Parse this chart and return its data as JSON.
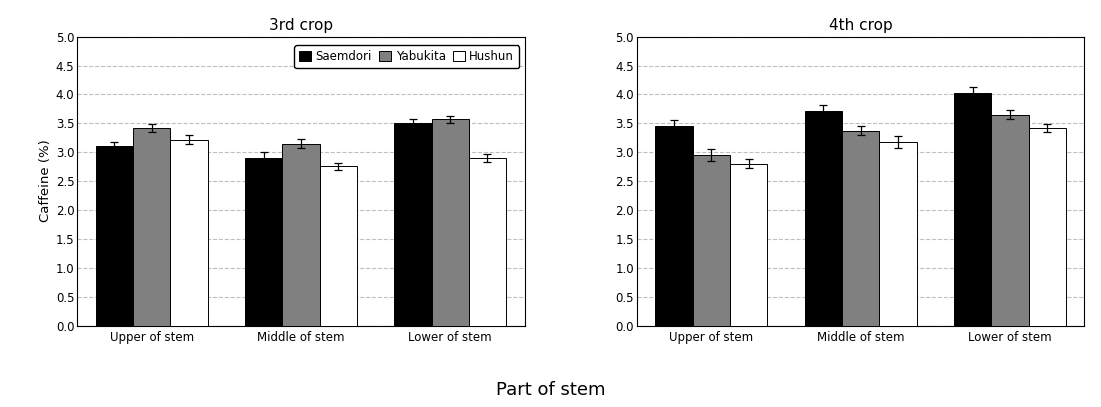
{
  "crop3": {
    "title": "3rd crop",
    "categories": [
      "Upper of stem",
      "Middle of stem",
      "Lower of stem"
    ],
    "Saemdori": [
      3.1,
      2.9,
      3.5
    ],
    "Yabukita": [
      3.42,
      3.15,
      3.57
    ],
    "Hushun": [
      3.22,
      2.76,
      2.9
    ],
    "Saemdori_err": [
      0.08,
      0.1,
      0.08
    ],
    "Yabukita_err": [
      0.07,
      0.08,
      0.06
    ],
    "Hushun_err": [
      0.08,
      0.06,
      0.07
    ]
  },
  "crop4": {
    "title": "4th crop",
    "categories": [
      "Upper of stem",
      "Middle of stem",
      "Lower of stem"
    ],
    "Saemdori": [
      3.45,
      3.72,
      4.02
    ],
    "Yabukita": [
      2.95,
      3.37,
      3.65
    ],
    "Hushun": [
      2.8,
      3.18,
      3.42
    ],
    "Saemdori_err": [
      0.1,
      0.1,
      0.1
    ],
    "Yabukita_err": [
      0.1,
      0.08,
      0.08
    ],
    "Hushun_err": [
      0.08,
      0.1,
      0.07
    ]
  },
  "colors": {
    "Saemdori": "#000000",
    "Yabukita": "#808080",
    "Hushun": "#ffffff"
  },
  "bar_edge_color": "#000000",
  "bar_width": 0.25,
  "ylim": [
    0.0,
    5.0
  ],
  "yticks": [
    0.0,
    0.5,
    1.0,
    1.5,
    2.0,
    2.5,
    3.0,
    3.5,
    4.0,
    4.5,
    5.0
  ],
  "ylabel": "Caffeine (%)",
  "xlabel": "Part of stem",
  "legend_labels": [
    "Saemdori",
    "Yabukita",
    "Hushun"
  ],
  "error_capsize": 3,
  "grid_linestyle": "--",
  "grid_color": "#b0b0b0",
  "grid_alpha": 0.8,
  "background_color": "#ffffff"
}
